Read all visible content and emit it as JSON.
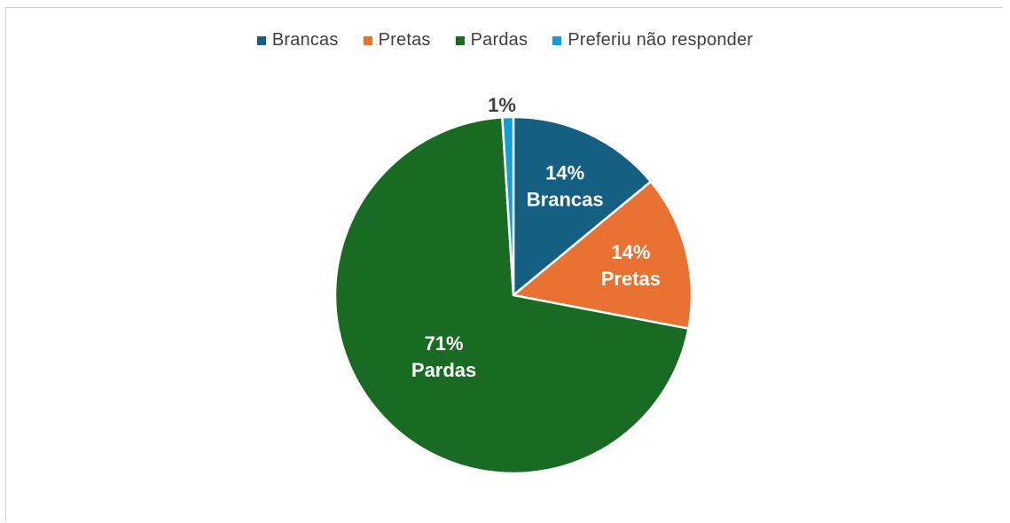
{
  "chart_data": {
    "type": "pie",
    "title": "",
    "legend_position": "top",
    "slices": [
      {
        "name": "Brancas",
        "value": 14,
        "label_pct": "14%",
        "label_name": "Brancas",
        "color": "#156082",
        "label_color": "#ffffff"
      },
      {
        "name": "Pretas",
        "value": 14,
        "label_pct": "14%",
        "label_name": "Pretas",
        "color": "#E97132",
        "label_color": "#ffffff"
      },
      {
        "name": "Pardas",
        "value": 71,
        "label_pct": "71%",
        "label_name": "Pardas",
        "color": "#196B24",
        "label_color": "#ffffff"
      },
      {
        "name": "Preferiu não responder",
        "value": 1,
        "label_pct": "1%",
        "label_name": "",
        "color": "#0F9ED5",
        "label_color": "#404040"
      }
    ]
  }
}
